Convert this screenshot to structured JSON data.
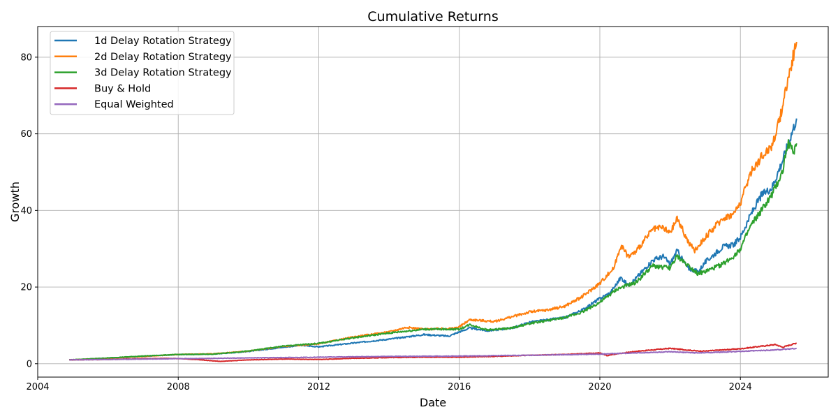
{
  "chart_data": {
    "type": "line",
    "title": "Cumulative Returns",
    "xlabel": "Date",
    "ylabel": "Growth",
    "xlim": [
      2004.0,
      2026.5
    ],
    "ylim": [
      -3.5,
      88
    ],
    "grid": true,
    "legend_position": "top-left",
    "x_ticks": [
      {
        "value": 2004,
        "label": "2004"
      },
      {
        "value": 2008,
        "label": "2008"
      },
      {
        "value": 2012,
        "label": "2012"
      },
      {
        "value": 2016,
        "label": "2016"
      },
      {
        "value": 2020,
        "label": "2020"
      },
      {
        "value": 2024,
        "label": "2024"
      }
    ],
    "y_ticks": [
      {
        "value": 0,
        "label": "0"
      },
      {
        "value": 20,
        "label": "20"
      },
      {
        "value": 40,
        "label": "40"
      },
      {
        "value": 60,
        "label": "60"
      },
      {
        "value": 80,
        "label": "80"
      }
    ],
    "series": [
      {
        "name": "1d Delay Rotation Strategy",
        "color": "#1f77b4",
        "x": [
          2004.9,
          2006.0,
          2007.0,
          2008.0,
          2009.0,
          2010.0,
          2011.0,
          2011.5,
          2012.0,
          2013.0,
          2014.0,
          2015.0,
          2015.7,
          2016.0,
          2016.3,
          2016.8,
          2017.5,
          2018.0,
          2019.0,
          2019.5,
          2020.0,
          2020.3,
          2020.6,
          2020.8,
          2021.0,
          2021.5,
          2021.8,
          2022.0,
          2022.2,
          2022.5,
          2022.8,
          2023.0,
          2023.5,
          2023.8,
          2024.0,
          2024.3,
          2024.6,
          2024.9,
          2025.2,
          2025.4,
          2025.6
        ],
        "y": [
          1.0,
          1.4,
          1.9,
          2.4,
          2.5,
          3.2,
          4.3,
          4.8,
          4.4,
          5.4,
          6.4,
          7.6,
          7.2,
          8.3,
          9.3,
          8.6,
          9.3,
          10.8,
          12.0,
          14.0,
          17.0,
          18.5,
          22.5,
          20.5,
          22.0,
          27.0,
          28.0,
          26.0,
          29.5,
          25.0,
          24.0,
          26.5,
          30.5,
          31.0,
          33.0,
          39.0,
          44.0,
          46.0,
          53.0,
          58.5,
          64.0
        ]
      },
      {
        "name": "2d Delay Rotation Strategy",
        "color": "#ff7f0e",
        "x": [
          2004.9,
          2006.0,
          2007.0,
          2008.0,
          2009.0,
          2010.0,
          2011.0,
          2012.0,
          2013.0,
          2014.0,
          2014.5,
          2015.0,
          2015.8,
          2016.0,
          2016.3,
          2017.0,
          2018.0,
          2018.5,
          2019.0,
          2019.5,
          2020.0,
          2020.4,
          2020.6,
          2020.8,
          2021.0,
          2021.5,
          2021.8,
          2022.0,
          2022.2,
          2022.5,
          2022.7,
          2023.0,
          2023.5,
          2023.8,
          2024.0,
          2024.3,
          2024.6,
          2024.9,
          2025.1,
          2025.3,
          2025.5,
          2025.6
        ],
        "y": [
          1.0,
          1.4,
          1.9,
          2.4,
          2.6,
          3.3,
          4.5,
          5.2,
          7.0,
          8.3,
          9.5,
          9.0,
          9.2,
          9.6,
          11.5,
          11.0,
          13.5,
          14.0,
          15.0,
          17.5,
          21.0,
          25.0,
          31.0,
          28.0,
          29.0,
          35.0,
          35.5,
          34.0,
          38.0,
          32.0,
          29.5,
          33.0,
          38.0,
          39.0,
          42.0,
          50.0,
          54.0,
          57.0,
          63.0,
          72.0,
          80.0,
          84.0
        ]
      },
      {
        "name": "3d Delay Rotation Strategy",
        "color": "#2ca02c",
        "x": [
          2004.9,
          2006.0,
          2007.0,
          2008.0,
          2009.0,
          2010.0,
          2011.0,
          2012.0,
          2013.0,
          2014.0,
          2015.0,
          2016.0,
          2016.3,
          2016.8,
          2017.5,
          2018.0,
          2019.0,
          2019.5,
          2020.0,
          2020.5,
          2020.8,
          2021.0,
          2021.5,
          2022.0,
          2022.2,
          2022.8,
          2023.0,
          2023.5,
          2023.8,
          2024.0,
          2024.3,
          2024.6,
          2024.9,
          2025.2,
          2025.35,
          2025.5,
          2025.6
        ],
        "y": [
          1.0,
          1.5,
          2.0,
          2.4,
          2.5,
          3.3,
          4.6,
          5.3,
          6.8,
          8.0,
          9.0,
          9.0,
          10.2,
          8.8,
          9.3,
          10.5,
          12.0,
          13.5,
          16.0,
          19.5,
          20.5,
          21.0,
          25.5,
          25.0,
          28.0,
          23.5,
          24.0,
          26.0,
          28.0,
          30.0,
          36.0,
          40.0,
          44.0,
          50.0,
          58.0,
          55.0,
          57.5
        ]
      },
      {
        "name": "Buy & Hold",
        "color": "#d62728",
        "x": [
          2004.9,
          2006.0,
          2007.0,
          2007.8,
          2008.5,
          2009.2,
          2010.0,
          2011.0,
          2012.0,
          2013.0,
          2014.0,
          2015.0,
          2016.0,
          2017.0,
          2018.0,
          2019.0,
          2020.0,
          2020.2,
          2020.5,
          2021.0,
          2022.0,
          2022.8,
          2023.0,
          2024.0,
          2025.0,
          2025.2,
          2025.6
        ],
        "y": [
          1.0,
          1.1,
          1.3,
          1.4,
          1.1,
          0.6,
          1.0,
          1.2,
          1.1,
          1.4,
          1.6,
          1.7,
          1.7,
          1.9,
          2.2,
          2.4,
          2.8,
          2.1,
          2.6,
          3.2,
          4.0,
          3.3,
          3.3,
          3.9,
          5.0,
          4.3,
          5.4
        ]
      },
      {
        "name": "Equal Weighted",
        "color": "#9467bd",
        "x": [
          2004.9,
          2006.0,
          2008.0,
          2010.0,
          2012.0,
          2014.0,
          2016.0,
          2018.0,
          2020.0,
          2022.0,
          2022.8,
          2024.0,
          2025.0,
          2025.6
        ],
        "y": [
          1.0,
          1.1,
          1.3,
          1.5,
          1.7,
          1.9,
          2.0,
          2.2,
          2.5,
          3.1,
          2.8,
          3.2,
          3.6,
          4.0
        ]
      }
    ]
  }
}
